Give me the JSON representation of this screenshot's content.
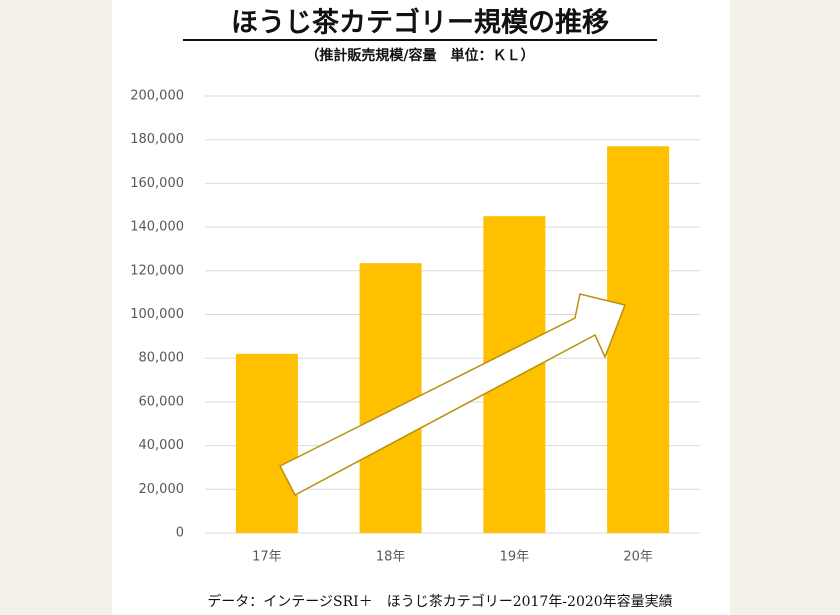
{
  "chart_data": {
    "type": "bar",
    "title": "ほうじ茶カテゴリー規模の推移",
    "subtitle": "（推計販売規模/容量　単位：ＫＬ）",
    "source": "データ：インテージSRI＋　ほうじ茶カテゴリー2017年-2020年容量実績",
    "categories": [
      "17年",
      "18年",
      "19年",
      "20年"
    ],
    "values": [
      82000,
      123500,
      145000,
      177000
    ],
    "color": "#ffc000",
    "ylim": [
      0,
      200000
    ],
    "yticks": [
      0,
      {
        "value": 20000,
        "label": "20,000"
      },
      {
        "value": 40000,
        "label": "40,000"
      },
      {
        "value": 60000,
        "label": "60,000"
      },
      {
        "value": 80000,
        "label": "80,000"
      },
      {
        "value": 100000,
        "label": "100,000"
      },
      {
        "value": 120000,
        "label": "120,000"
      },
      {
        "value": 140000,
        "label": "140,000"
      },
      {
        "value": 160000,
        "label": "160,000"
      },
      {
        "value": 180000,
        "label": "180,000"
      },
      {
        "value": 200000,
        "label": "200,000"
      }
    ],
    "grid": true
  }
}
